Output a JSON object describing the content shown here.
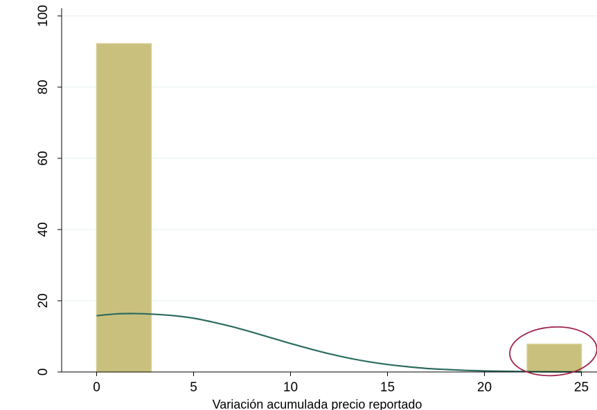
{
  "chart_data": {
    "type": "bar",
    "title": "",
    "xlabel": "Variación acumulada precio reportado",
    "ylabel": "",
    "xlim": [
      -2.6,
      26
    ],
    "ylim": [
      0,
      102
    ],
    "x_ticks": [
      "0",
      "5",
      "10",
      "15",
      "20",
      "25"
    ],
    "y_ticks": [
      "0",
      "20",
      "40",
      "60",
      "80",
      "100"
    ],
    "grid": true,
    "legend": "none",
    "bins": [
      {
        "x_start": 0,
        "x_end": 2.82,
        "value": 92.2
      },
      {
        "x_start": 22.2,
        "x_end": 25,
        "value": 7.8
      }
    ],
    "series": [
      {
        "type": "line",
        "x": [
          0,
          1,
          2,
          3,
          4,
          5,
          6,
          7,
          8,
          9,
          10,
          11,
          12,
          13,
          14,
          15,
          16,
          17,
          18,
          19,
          20,
          21,
          22,
          23,
          24,
          25
        ],
        "y": [
          15.8,
          16.3,
          16.4,
          16.2,
          15.8,
          15.1,
          14.0,
          12.7,
          11.2,
          9.6,
          8.0,
          6.5,
          5.1,
          3.9,
          2.9,
          2.1,
          1.5,
          1.0,
          0.7,
          0.45,
          0.3,
          0.2,
          0.12,
          0.08,
          0.05,
          0.03
        ]
      }
    ],
    "annotations": [
      {
        "shape": "ellipse",
        "x_center": 23.55,
        "y_center": 5.8,
        "x_radius": 2.25,
        "y_radius": 6.8
      }
    ],
    "colors": {
      "bar_fill": "#c9c07d",
      "bar_edge": "#d6cf93",
      "density_line": "#2b6b5f",
      "annotation": "#a0254a",
      "gridline": "#eaf2f3"
    }
  }
}
